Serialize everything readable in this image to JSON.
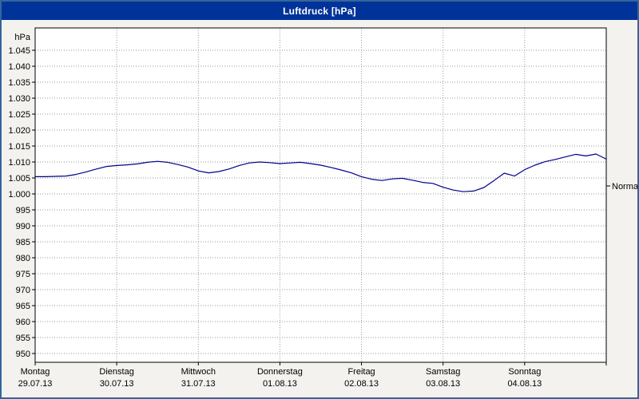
{
  "window": {
    "title": "Luftdruck [hPa]"
  },
  "colors": {
    "titlebar": "#003399",
    "window_border": "#336699",
    "line": "#00008b",
    "grid": "#9a9a9a",
    "plot_background": "#ffffff",
    "plot_border": "#000000"
  },
  "chart_data": {
    "type": "line",
    "title": "Luftdruck [hPa]",
    "y_unit": "hPa",
    "ylim": [
      950,
      1045
    ],
    "y_tick_step": 5,
    "y_tick_labels": [
      "1.045",
      "1.040",
      "1.035",
      "1.030",
      "1.025",
      "1.020",
      "1.015",
      "1.010",
      "1.005",
      "1.000",
      "995",
      "990",
      "985",
      "980",
      "975",
      "970",
      "965",
      "960",
      "955",
      "950"
    ],
    "grid": true,
    "legend_position": "none",
    "x_days": [
      {
        "name": "Montag",
        "date": "29.07.13"
      },
      {
        "name": "Dienstag",
        "date": "30.07.13"
      },
      {
        "name": "Mittwoch",
        "date": "31.07.13"
      },
      {
        "name": "Donnerstag",
        "date": "01.08.13"
      },
      {
        "name": "Freitag",
        "date": "02.08.13"
      },
      {
        "name": "Samstag",
        "date": "03.08.13"
      },
      {
        "name": "Sonntag",
        "date": "04.08.13"
      }
    ],
    "x_interval_hours": 3,
    "normal": {
      "label": "Normal",
      "value": 1002.5
    },
    "series": [
      {
        "name": "Luftdruck",
        "color": "#00008b",
        "values": [
          1005.4,
          1005.4,
          1005.5,
          1005.6,
          1006.1,
          1006.9,
          1007.8,
          1008.6,
          1008.9,
          1009.1,
          1009.4,
          1009.9,
          1010.2,
          1009.9,
          1009.2,
          1008.4,
          1007.2,
          1006.6,
          1007.0,
          1007.8,
          1008.9,
          1009.7,
          1010.0,
          1009.8,
          1009.5,
          1009.7,
          1009.9,
          1009.5,
          1009.0,
          1008.3,
          1007.5,
          1006.6,
          1005.4,
          1004.6,
          1004.2,
          1004.7,
          1004.9,
          1004.3,
          1003.6,
          1003.3,
          1002.1,
          1001.2,
          1000.7,
          1000.9,
          1002.0,
          1004.2,
          1006.5,
          1005.6,
          1007.6,
          1009.0,
          1010.1,
          1010.8,
          1011.6,
          1012.4,
          1011.9,
          1012.5,
          1010.9
        ]
      }
    ]
  }
}
